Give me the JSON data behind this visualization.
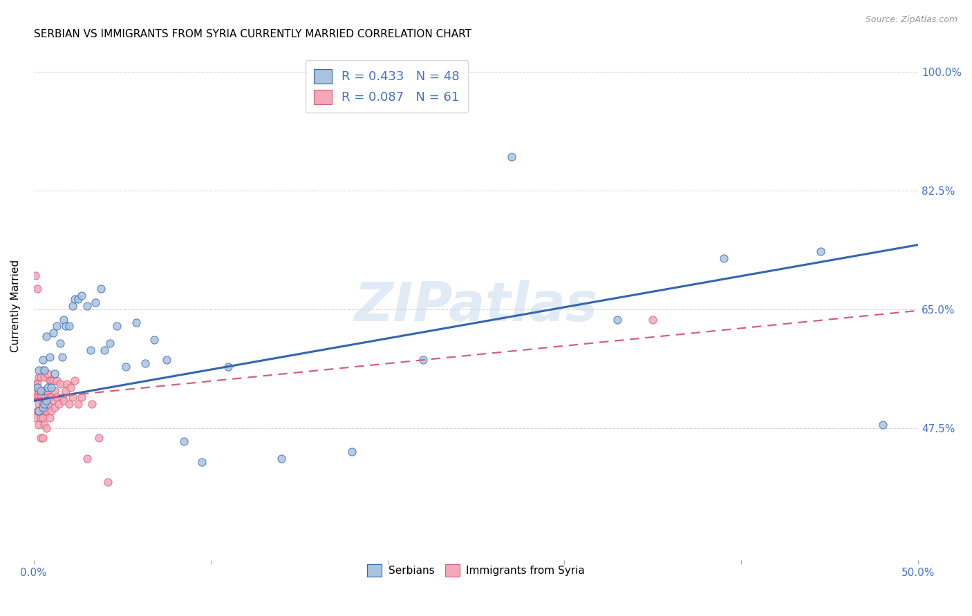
{
  "title": "SERBIAN VS IMMIGRANTS FROM SYRIA CURRENTLY MARRIED CORRELATION CHART",
  "source": "Source: ZipAtlas.com",
  "ylabel": "Currently Married",
  "watermark": "ZIPatlas",
  "x_min": 0.0,
  "x_max": 0.5,
  "y_min": 0.28,
  "y_max": 1.03,
  "x_tick_positions": [
    0.0,
    0.1,
    0.2,
    0.3,
    0.4,
    0.5
  ],
  "x_tick_labels": [
    "0.0%",
    "",
    "",
    "",
    "",
    "50.0%"
  ],
  "y_tick_vals_right": [
    0.475,
    0.65,
    0.825,
    1.0
  ],
  "y_tick_labels_right": [
    "47.5%",
    "65.0%",
    "82.5%",
    "100.0%"
  ],
  "serbian_color": "#a8c4e0",
  "syrian_color": "#f4a7b9",
  "serbian_line_color": "#3465b0",
  "syrian_line_color": "#d45f78",
  "R_serbian": 0.433,
  "N_serbian": 48,
  "R_syrian": 0.087,
  "N_syrian": 61,
  "legend_label_1": "Serbians",
  "legend_label_2": "Immigrants from Syria",
  "serbian_intercept": 0.515,
  "serbian_slope": 0.46,
  "syrian_intercept": 0.518,
  "syrian_slope": 0.26,
  "serbian_points_x": [
    0.002,
    0.003,
    0.003,
    0.004,
    0.005,
    0.005,
    0.006,
    0.006,
    0.007,
    0.007,
    0.008,
    0.009,
    0.01,
    0.011,
    0.012,
    0.013,
    0.015,
    0.016,
    0.017,
    0.018,
    0.02,
    0.022,
    0.023,
    0.025,
    0.027,
    0.03,
    0.032,
    0.035,
    0.038,
    0.04,
    0.043,
    0.047,
    0.052,
    0.058,
    0.063,
    0.068,
    0.075,
    0.085,
    0.095,
    0.11,
    0.14,
    0.18,
    0.22,
    0.27,
    0.33,
    0.39,
    0.445,
    0.48
  ],
  "serbian_points_y": [
    0.535,
    0.5,
    0.56,
    0.53,
    0.505,
    0.575,
    0.51,
    0.56,
    0.515,
    0.61,
    0.535,
    0.58,
    0.535,
    0.615,
    0.555,
    0.625,
    0.6,
    0.58,
    0.635,
    0.625,
    0.625,
    0.655,
    0.665,
    0.665,
    0.67,
    0.655,
    0.59,
    0.66,
    0.68,
    0.59,
    0.6,
    0.625,
    0.565,
    0.63,
    0.57,
    0.605,
    0.575,
    0.455,
    0.425,
    0.565,
    0.43,
    0.44,
    0.575,
    0.875,
    0.635,
    0.725,
    0.735,
    0.48
  ],
  "syrian_points_x": [
    0.001,
    0.001,
    0.001,
    0.001,
    0.001,
    0.002,
    0.002,
    0.002,
    0.002,
    0.003,
    0.003,
    0.003,
    0.003,
    0.004,
    0.004,
    0.004,
    0.004,
    0.005,
    0.005,
    0.005,
    0.005,
    0.005,
    0.006,
    0.006,
    0.006,
    0.006,
    0.007,
    0.007,
    0.007,
    0.008,
    0.008,
    0.008,
    0.009,
    0.009,
    0.009,
    0.01,
    0.01,
    0.01,
    0.011,
    0.011,
    0.012,
    0.012,
    0.013,
    0.013,
    0.014,
    0.015,
    0.016,
    0.017,
    0.018,
    0.019,
    0.02,
    0.021,
    0.022,
    0.023,
    0.025,
    0.027,
    0.03,
    0.033,
    0.037,
    0.042,
    0.35
  ],
  "syrian_points_y": [
    0.52,
    0.53,
    0.54,
    0.7,
    0.49,
    0.5,
    0.52,
    0.54,
    0.68,
    0.48,
    0.51,
    0.53,
    0.55,
    0.46,
    0.49,
    0.52,
    0.55,
    0.46,
    0.49,
    0.51,
    0.53,
    0.56,
    0.48,
    0.5,
    0.53,
    0.55,
    0.475,
    0.5,
    0.53,
    0.51,
    0.53,
    0.555,
    0.49,
    0.52,
    0.545,
    0.5,
    0.52,
    0.545,
    0.515,
    0.545,
    0.505,
    0.53,
    0.52,
    0.545,
    0.51,
    0.54,
    0.52,
    0.515,
    0.53,
    0.54,
    0.51,
    0.535,
    0.52,
    0.545,
    0.51,
    0.52,
    0.43,
    0.51,
    0.46,
    0.395,
    0.635
  ],
  "grid_color": "#cccccc",
  "background_color": "#ffffff",
  "title_fontsize": 11,
  "tick_color": "#4472c4"
}
